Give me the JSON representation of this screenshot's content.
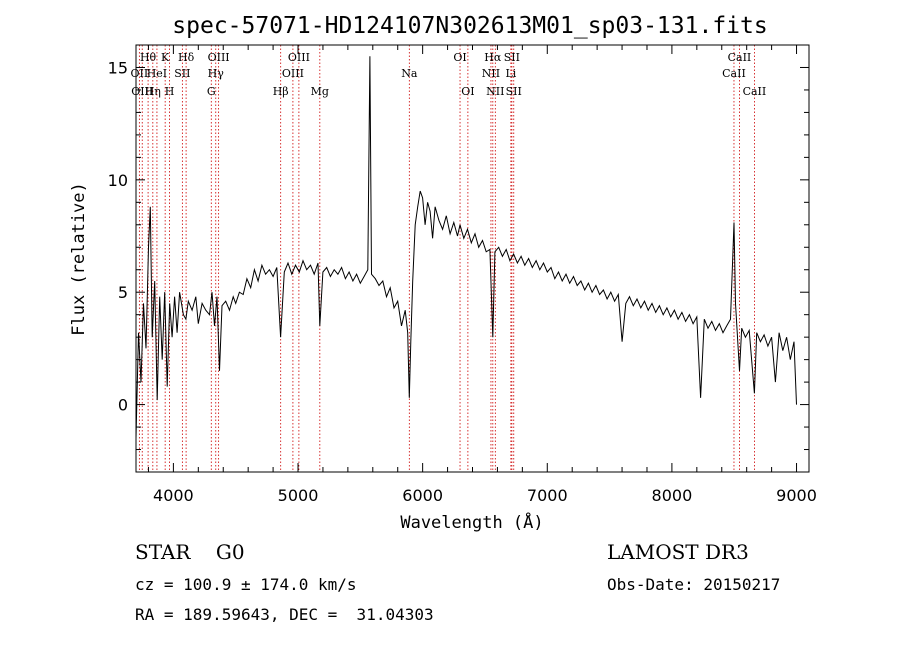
{
  "chart_data": {
    "type": "line",
    "title": "spec-57071-HD124107N302613M01_sp03-131.fits",
    "xlabel": "Wavelength (Å)",
    "ylabel": "Flux (relative)",
    "xlim": [
      3700,
      9100
    ],
    "ylim": [
      -3,
      16
    ],
    "xticks": [
      4000,
      5000,
      6000,
      7000,
      8000,
      9000
    ],
    "yticks": [
      0,
      5,
      10,
      15
    ],
    "grid": false,
    "series": [
      {
        "color": "#000000",
        "points": [
          [
            3700,
            -1.5
          ],
          [
            3720,
            3.2
          ],
          [
            3740,
            1.0
          ],
          [
            3760,
            4.5
          ],
          [
            3780,
            2.5
          ],
          [
            3800,
            7.0
          ],
          [
            3815,
            8.8
          ],
          [
            3830,
            3.0
          ],
          [
            3850,
            5.5
          ],
          [
            3870,
            0.2
          ],
          [
            3890,
            4.8
          ],
          [
            3910,
            2.0
          ],
          [
            3930,
            5.0
          ],
          [
            3950,
            0.8
          ],
          [
            3970,
            4.5
          ],
          [
            3990,
            3.0
          ],
          [
            4010,
            4.8
          ],
          [
            4030,
            3.2
          ],
          [
            4050,
            5.0
          ],
          [
            4080,
            4.0
          ],
          [
            4100,
            3.8
          ],
          [
            4120,
            4.6
          ],
          [
            4150,
            4.2
          ],
          [
            4180,
            4.8
          ],
          [
            4200,
            3.6
          ],
          [
            4230,
            4.5
          ],
          [
            4260,
            4.2
          ],
          [
            4290,
            4.0
          ],
          [
            4310,
            5.0
          ],
          [
            4330,
            3.5
          ],
          [
            4350,
            4.8
          ],
          [
            4370,
            1.5
          ],
          [
            4390,
            4.4
          ],
          [
            4420,
            4.6
          ],
          [
            4450,
            4.2
          ],
          [
            4480,
            4.8
          ],
          [
            4500,
            4.5
          ],
          [
            4530,
            5.0
          ],
          [
            4560,
            4.9
          ],
          [
            4590,
            5.6
          ],
          [
            4620,
            5.2
          ],
          [
            4650,
            6.0
          ],
          [
            4680,
            5.5
          ],
          [
            4710,
            6.2
          ],
          [
            4740,
            5.8
          ],
          [
            4770,
            6.0
          ],
          [
            4800,
            5.7
          ],
          [
            4830,
            6.1
          ],
          [
            4860,
            3.0
          ],
          [
            4890,
            5.9
          ],
          [
            4920,
            6.3
          ],
          [
            4950,
            5.8
          ],
          [
            4980,
            6.2
          ],
          [
            5010,
            5.9
          ],
          [
            5040,
            6.4
          ],
          [
            5070,
            6.0
          ],
          [
            5100,
            6.2
          ],
          [
            5130,
            5.8
          ],
          [
            5160,
            6.3
          ],
          [
            5175,
            3.5
          ],
          [
            5200,
            5.9
          ],
          [
            5230,
            6.1
          ],
          [
            5260,
            5.7
          ],
          [
            5290,
            6.0
          ],
          [
            5320,
            5.8
          ],
          [
            5350,
            6.1
          ],
          [
            5380,
            5.6
          ],
          [
            5410,
            5.9
          ],
          [
            5440,
            5.5
          ],
          [
            5470,
            5.8
          ],
          [
            5500,
            5.4
          ],
          [
            5530,
            5.7
          ],
          [
            5560,
            6.0
          ],
          [
            5577,
            15.5
          ],
          [
            5590,
            5.8
          ],
          [
            5620,
            5.6
          ],
          [
            5650,
            5.3
          ],
          [
            5680,
            5.5
          ],
          [
            5710,
            4.8
          ],
          [
            5740,
            5.2
          ],
          [
            5770,
            4.3
          ],
          [
            5800,
            4.6
          ],
          [
            5830,
            3.5
          ],
          [
            5860,
            4.2
          ],
          [
            5880,
            3.2
          ],
          [
            5893,
            0.3
          ],
          [
            5905,
            2.8
          ],
          [
            5920,
            5.5
          ],
          [
            5940,
            8.0
          ],
          [
            5960,
            8.8
          ],
          [
            5980,
            9.5
          ],
          [
            6000,
            9.2
          ],
          [
            6020,
            8.0
          ],
          [
            6040,
            9.0
          ],
          [
            6060,
            8.6
          ],
          [
            6080,
            7.4
          ],
          [
            6100,
            8.8
          ],
          [
            6130,
            8.2
          ],
          [
            6160,
            7.8
          ],
          [
            6190,
            8.4
          ],
          [
            6220,
            7.6
          ],
          [
            6250,
            8.1
          ],
          [
            6280,
            7.5
          ],
          [
            6300,
            8.0
          ],
          [
            6330,
            7.4
          ],
          [
            6360,
            7.8
          ],
          [
            6390,
            7.2
          ],
          [
            6420,
            7.6
          ],
          [
            6450,
            7.0
          ],
          [
            6480,
            7.3
          ],
          [
            6510,
            6.8
          ],
          [
            6540,
            6.9
          ],
          [
            6563,
            3.0
          ],
          [
            6580,
            6.8
          ],
          [
            6610,
            7.0
          ],
          [
            6640,
            6.6
          ],
          [
            6670,
            6.9
          ],
          [
            6700,
            6.4
          ],
          [
            6730,
            6.7
          ],
          [
            6760,
            6.3
          ],
          [
            6790,
            6.6
          ],
          [
            6820,
            6.2
          ],
          [
            6850,
            6.5
          ],
          [
            6880,
            6.1
          ],
          [
            6910,
            6.4
          ],
          [
            6940,
            6.0
          ],
          [
            6970,
            6.3
          ],
          [
            7000,
            5.9
          ],
          [
            7030,
            6.1
          ],
          [
            7060,
            5.6
          ],
          [
            7090,
            5.9
          ],
          [
            7120,
            5.5
          ],
          [
            7150,
            5.8
          ],
          [
            7180,
            5.4
          ],
          [
            7210,
            5.7
          ],
          [
            7240,
            5.3
          ],
          [
            7270,
            5.5
          ],
          [
            7300,
            5.1
          ],
          [
            7330,
            5.4
          ],
          [
            7360,
            5.0
          ],
          [
            7390,
            5.3
          ],
          [
            7420,
            4.9
          ],
          [
            7450,
            5.1
          ],
          [
            7480,
            4.7
          ],
          [
            7510,
            5.0
          ],
          [
            7540,
            4.6
          ],
          [
            7570,
            4.9
          ],
          [
            7600,
            2.8
          ],
          [
            7630,
            4.5
          ],
          [
            7660,
            4.8
          ],
          [
            7690,
            4.4
          ],
          [
            7720,
            4.7
          ],
          [
            7750,
            4.3
          ],
          [
            7780,
            4.6
          ],
          [
            7810,
            4.2
          ],
          [
            7840,
            4.5
          ],
          [
            7870,
            4.1
          ],
          [
            7900,
            4.4
          ],
          [
            7930,
            4.0
          ],
          [
            7960,
            4.3
          ],
          [
            7990,
            3.9
          ],
          [
            8020,
            4.2
          ],
          [
            8050,
            3.8
          ],
          [
            8080,
            4.1
          ],
          [
            8110,
            3.7
          ],
          [
            8140,
            4.0
          ],
          [
            8170,
            3.6
          ],
          [
            8200,
            3.9
          ],
          [
            8230,
            0.3
          ],
          [
            8260,
            3.8
          ],
          [
            8290,
            3.4
          ],
          [
            8320,
            3.7
          ],
          [
            8350,
            3.3
          ],
          [
            8380,
            3.6
          ],
          [
            8410,
            3.2
          ],
          [
            8440,
            3.5
          ],
          [
            8470,
            3.8
          ],
          [
            8498,
            8.1
          ],
          [
            8510,
            4.5
          ],
          [
            8542,
            1.5
          ],
          [
            8560,
            3.4
          ],
          [
            8590,
            3.0
          ],
          [
            8620,
            3.3
          ],
          [
            8662,
            0.5
          ],
          [
            8680,
            3.2
          ],
          [
            8710,
            2.8
          ],
          [
            8740,
            3.1
          ],
          [
            8770,
            2.6
          ],
          [
            8800,
            3.0
          ],
          [
            8830,
            1.0
          ],
          [
            8860,
            3.2
          ],
          [
            8890,
            2.4
          ],
          [
            8920,
            3.0
          ],
          [
            8950,
            2.0
          ],
          [
            8980,
            2.8
          ],
          [
            9000,
            0.0
          ]
        ]
      }
    ],
    "lines": [
      {
        "wl": 3727,
        "label": "OII",
        "row": 2
      },
      {
        "wl": 3750,
        "label": "OIII",
        "row": 3
      },
      {
        "wl": 3797,
        "label": "Hθ",
        "row": 1
      },
      {
        "wl": 3835,
        "label": "Hη",
        "row": 3
      },
      {
        "wl": 3868,
        "label": "HeI",
        "row": 2
      },
      {
        "wl": 3934,
        "label": "K",
        "row": 1
      },
      {
        "wl": 3969,
        "label": "H",
        "row": 3
      },
      {
        "wl": 4072,
        "label": "SII",
        "row": 2
      },
      {
        "wl": 4102,
        "label": "Hδ",
        "row": 1
      },
      {
        "wl": 4304,
        "label": "G",
        "row": 3
      },
      {
        "wl": 4340,
        "label": "Hγ",
        "row": 2
      },
      {
        "wl": 4363,
        "label": "OIII",
        "row": 1
      },
      {
        "wl": 4861,
        "label": "Hβ",
        "row": 3
      },
      {
        "wl": 4959,
        "label": "OIII",
        "row": 2
      },
      {
        "wl": 5007,
        "label": "OIII",
        "row": 1
      },
      {
        "wl": 5175,
        "label": "Mg",
        "row": 3
      },
      {
        "wl": 5893,
        "label": "Na",
        "row": 2
      },
      {
        "wl": 6300,
        "label": "OI",
        "row": 1
      },
      {
        "wl": 6363,
        "label": "OI",
        "row": 3
      },
      {
        "wl": 6548,
        "label": "NII",
        "row": 2
      },
      {
        "wl": 6563,
        "label": "Hα",
        "row": 1
      },
      {
        "wl": 6583,
        "label": "NII",
        "row": 3
      },
      {
        "wl": 6708,
        "label": "Li",
        "row": 2
      },
      {
        "wl": 6716,
        "label": "SII",
        "row": 1
      },
      {
        "wl": 6731,
        "label": "SII",
        "row": 3
      },
      {
        "wl": 8498,
        "label": "CaII",
        "row": 2
      },
      {
        "wl": 8542,
        "label": "CaII",
        "row": 1
      },
      {
        "wl": 8662,
        "label": "CaII",
        "row": 3
      }
    ],
    "line_color": "#cc0000"
  },
  "info": {
    "classification": "STAR    G0",
    "survey": "LAMOST DR3",
    "redshift": "cz = 100.9 ± 174.0 km/s",
    "obs_date": "Obs-Date: 20150217",
    "coords": "RA = 189.59643, DEC =  31.04303"
  }
}
